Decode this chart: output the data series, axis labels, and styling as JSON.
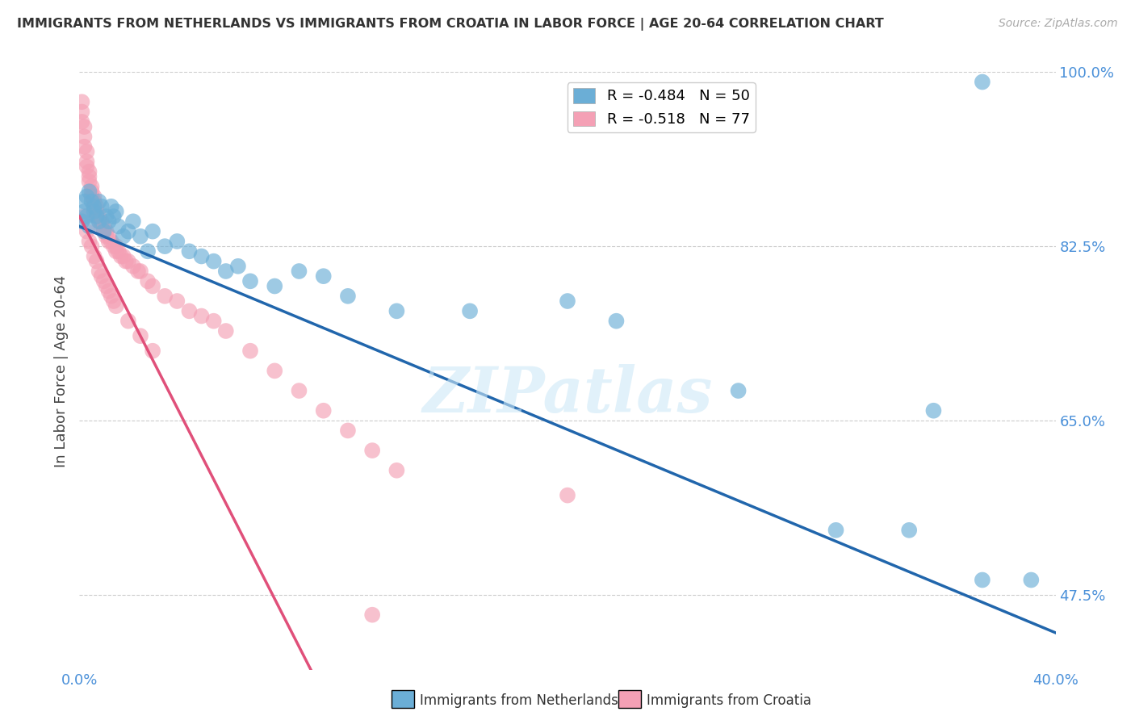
{
  "title": "IMMIGRANTS FROM NETHERLANDS VS IMMIGRANTS FROM CROATIA IN LABOR FORCE | AGE 20-64 CORRELATION CHART",
  "source": "Source: ZipAtlas.com",
  "ylabel": "In Labor Force | Age 20-64",
  "xmin": 0.0,
  "xmax": 0.4,
  "ymin": 0.4,
  "ymax": 1.0,
  "yticks": [
    0.475,
    0.65,
    0.825,
    1.0
  ],
  "ytick_labels": [
    "47.5%",
    "65.0%",
    "82.5%",
    "100.0%"
  ],
  "xticks": [
    0.0,
    0.05,
    0.1,
    0.15,
    0.2,
    0.25,
    0.3,
    0.35,
    0.4
  ],
  "r_netherlands": -0.484,
  "n_netherlands": 50,
  "r_croatia": -0.518,
  "n_croatia": 77,
  "netherlands_color": "#6baed6",
  "croatia_color": "#f4a0b5",
  "netherlands_line_color": "#2166ac",
  "croatia_line_color": "#e0507a",
  "watermark": "ZIPatlas",
  "nl_intercept": 0.845,
  "nl_slope": -1.02,
  "hr_intercept": 0.855,
  "hr_slope": -4.8,
  "netherlands_x": [
    0.001,
    0.002,
    0.003,
    0.004,
    0.005,
    0.006,
    0.007,
    0.008,
    0.009,
    0.01,
    0.011,
    0.012,
    0.013,
    0.014,
    0.015,
    0.016,
    0.018,
    0.02,
    0.022,
    0.025,
    0.028,
    0.03,
    0.035,
    0.04,
    0.045,
    0.05,
    0.055,
    0.06,
    0.065,
    0.07,
    0.08,
    0.09,
    0.1,
    0.11,
    0.13,
    0.16,
    0.2,
    0.22,
    0.27,
    0.31,
    0.34,
    0.35,
    0.37,
    0.39,
    0.002,
    0.003,
    0.004,
    0.006,
    0.008,
    0.37
  ],
  "netherlands_y": [
    0.85,
    0.86,
    0.855,
    0.845,
    0.87,
    0.86,
    0.855,
    0.85,
    0.865,
    0.84,
    0.855,
    0.85,
    0.865,
    0.855,
    0.86,
    0.845,
    0.835,
    0.84,
    0.85,
    0.835,
    0.82,
    0.84,
    0.825,
    0.83,
    0.82,
    0.815,
    0.81,
    0.8,
    0.805,
    0.79,
    0.785,
    0.8,
    0.795,
    0.775,
    0.76,
    0.76,
    0.77,
    0.75,
    0.68,
    0.54,
    0.54,
    0.66,
    0.49,
    0.49,
    0.87,
    0.875,
    0.88,
    0.865,
    0.87,
    0.99
  ],
  "croatia_x": [
    0.001,
    0.001,
    0.001,
    0.002,
    0.002,
    0.002,
    0.003,
    0.003,
    0.003,
    0.004,
    0.004,
    0.004,
    0.005,
    0.005,
    0.005,
    0.006,
    0.006,
    0.006,
    0.007,
    0.007,
    0.007,
    0.008,
    0.008,
    0.009,
    0.009,
    0.01,
    0.01,
    0.011,
    0.011,
    0.012,
    0.012,
    0.013,
    0.014,
    0.015,
    0.015,
    0.016,
    0.017,
    0.018,
    0.019,
    0.02,
    0.022,
    0.024,
    0.025,
    0.028,
    0.03,
    0.035,
    0.04,
    0.045,
    0.05,
    0.055,
    0.06,
    0.07,
    0.08,
    0.09,
    0.1,
    0.11,
    0.12,
    0.13,
    0.002,
    0.003,
    0.004,
    0.005,
    0.006,
    0.007,
    0.008,
    0.009,
    0.01,
    0.011,
    0.012,
    0.013,
    0.014,
    0.015,
    0.02,
    0.025,
    0.03,
    0.12,
    0.2
  ],
  "croatia_y": [
    0.97,
    0.96,
    0.95,
    0.945,
    0.935,
    0.925,
    0.92,
    0.91,
    0.905,
    0.9,
    0.895,
    0.89,
    0.885,
    0.88,
    0.875,
    0.875,
    0.87,
    0.865,
    0.865,
    0.86,
    0.855,
    0.855,
    0.85,
    0.85,
    0.845,
    0.845,
    0.84,
    0.84,
    0.835,
    0.835,
    0.83,
    0.83,
    0.825,
    0.825,
    0.82,
    0.82,
    0.815,
    0.815,
    0.81,
    0.81,
    0.805,
    0.8,
    0.8,
    0.79,
    0.785,
    0.775,
    0.77,
    0.76,
    0.755,
    0.75,
    0.74,
    0.72,
    0.7,
    0.68,
    0.66,
    0.64,
    0.62,
    0.6,
    0.855,
    0.84,
    0.83,
    0.825,
    0.815,
    0.81,
    0.8,
    0.795,
    0.79,
    0.785,
    0.78,
    0.775,
    0.77,
    0.765,
    0.75,
    0.735,
    0.72,
    0.455,
    0.575
  ]
}
